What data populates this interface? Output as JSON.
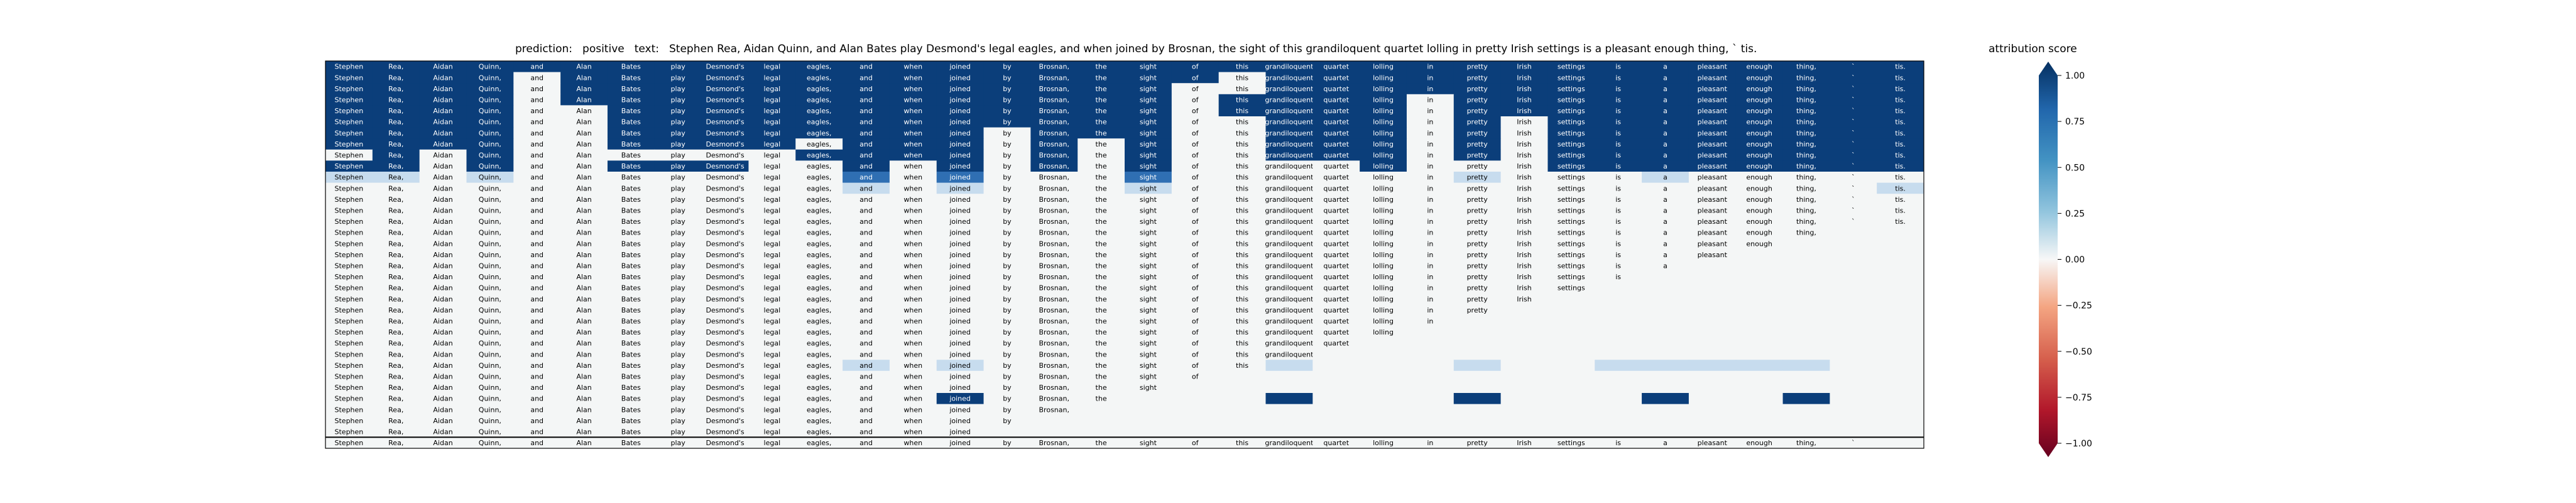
{
  "title": {
    "prediction_label": "prediction:",
    "prediction_value": "positive",
    "text_label": "text:",
    "text_value": "Stephen Rea, Aidan Quinn, and Alan Bates play Desmond's legal eagles, and when joined by Brosnan, the sight of this grandiloquent quartet lolling in pretty Irish settings is a pleasant enough thing, ` tis."
  },
  "colorbar": {
    "title": "attribution score",
    "ticks": [
      "1.00",
      "0.75",
      "0.50",
      "0.25",
      "0.00",
      "−0.25",
      "−0.50",
      "−0.75",
      "−1.00"
    ],
    "colors": {
      "strong_positive": "#0b3e7a",
      "positive": "#2f6fb3",
      "light_positive": "#c7dcee",
      "neutral": "#f4f6f6",
      "negative": "#c7283c",
      "strong_negative": "#6b001f"
    }
  },
  "chart_data": {
    "type": "heatmap",
    "tokens": [
      "Stephen",
      "Rea,",
      "Aidan",
      "Quinn,",
      "and",
      "Alan",
      "Bates",
      "play",
      "Desmond's",
      "legal",
      "eagles,",
      "and",
      "when",
      "joined",
      "by",
      "Brosnan,",
      "the",
      "sight",
      "of",
      "this",
      "grandiloquent",
      "quartet",
      "lolling",
      "in",
      "pretty",
      "Irish",
      "settings",
      "is",
      "a",
      "pleasant",
      "enough",
      "thing,",
      "`",
      "tis."
    ],
    "row_lengths": [
      34,
      34,
      34,
      34,
      34,
      34,
      34,
      34,
      34,
      34,
      34,
      34,
      34,
      34,
      34,
      32,
      31,
      30,
      29,
      28,
      27,
      26,
      25,
      24,
      23,
      22,
      21,
      20,
      19,
      18,
      17,
      16,
      15,
      14,
      33
    ],
    "attribution_levels": [
      1,
      0.5,
      0.15,
      0
    ],
    "row_attributions": [
      {
        "row": 0,
        "level": 1,
        "cols": [
          0,
          1,
          2,
          3,
          4,
          5,
          6,
          7,
          8,
          9,
          10,
          11,
          12,
          13,
          14,
          15,
          16,
          17,
          18,
          19,
          20,
          21,
          22,
          23,
          24,
          25,
          26,
          27,
          28,
          29,
          30,
          31,
          32,
          33
        ]
      },
      {
        "row": 1,
        "level": 1,
        "cols": [
          0,
          1,
          2,
          3,
          5,
          6,
          7,
          8,
          9,
          10,
          11,
          12,
          13,
          14,
          15,
          16,
          17,
          18,
          20,
          21,
          22,
          23,
          24,
          25,
          26,
          27,
          28,
          29,
          30,
          31,
          32,
          33
        ]
      },
      {
        "row": 2,
        "level": 1,
        "cols": [
          0,
          1,
          2,
          3,
          5,
          6,
          7,
          8,
          9,
          10,
          11,
          12,
          13,
          14,
          15,
          16,
          17,
          20,
          21,
          22,
          23,
          24,
          25,
          26,
          27,
          28,
          29,
          30,
          31,
          32,
          33
        ]
      },
      {
        "row": 3,
        "level": 1,
        "cols": [
          0,
          1,
          2,
          3,
          5,
          6,
          7,
          8,
          9,
          10,
          11,
          12,
          13,
          14,
          15,
          16,
          17,
          19,
          20,
          21,
          22,
          24,
          25,
          26,
          27,
          28,
          29,
          30,
          31,
          32,
          33
        ]
      },
      {
        "row": 4,
        "level": 1,
        "cols": [
          0,
          1,
          2,
          3,
          6,
          7,
          8,
          9,
          10,
          11,
          12,
          13,
          14,
          15,
          16,
          17,
          19,
          20,
          21,
          22,
          24,
          25,
          26,
          27,
          28,
          29,
          30,
          31,
          32,
          33
        ]
      },
      {
        "row": 5,
        "level": 1,
        "cols": [
          0,
          1,
          2,
          3,
          6,
          7,
          8,
          9,
          10,
          11,
          12,
          13,
          14,
          15,
          16,
          17,
          20,
          21,
          22,
          24,
          26,
          27,
          28,
          29,
          30,
          31,
          32,
          33
        ]
      },
      {
        "row": 6,
        "level": 1,
        "cols": [
          0,
          1,
          2,
          3,
          6,
          7,
          8,
          9,
          10,
          11,
          12,
          13,
          15,
          16,
          17,
          20,
          21,
          22,
          24,
          26,
          27,
          28,
          29,
          30,
          31,
          32,
          33
        ]
      },
      {
        "row": 7,
        "level": 1,
        "cols": [
          0,
          1,
          2,
          3,
          6,
          7,
          8,
          9,
          11,
          12,
          13,
          15,
          17,
          20,
          21,
          22,
          24,
          26,
          27,
          28,
          29,
          30,
          31,
          32,
          33
        ]
      },
      {
        "row": 8,
        "level": 1,
        "cols": [
          1,
          3,
          10,
          11,
          12,
          13,
          15,
          17,
          20,
          21,
          22,
          24,
          26,
          27,
          28,
          29,
          30,
          31,
          32,
          33
        ]
      },
      {
        "row": 9,
        "level": 1,
        "cols": [
          0,
          1,
          3,
          6,
          7,
          8,
          11,
          13,
          15,
          17,
          22,
          26,
          27,
          28,
          29,
          30,
          31,
          32,
          33
        ]
      },
      {
        "row": 10,
        "level": 0.5,
        "cols": [
          11,
          13,
          17
        ]
      },
      {
        "row": 10,
        "level": 0.15,
        "cols": [
          0,
          1,
          3,
          24,
          28
        ]
      },
      {
        "row": 11,
        "level": 0.15,
        "cols": [
          11,
          13,
          17,
          33
        ]
      },
      {
        "row": 27,
        "level": 0.15,
        "cols": [
          11,
          13,
          20,
          24,
          27,
          28,
          29,
          30,
          31
        ]
      },
      {
        "row": 30,
        "level": 1,
        "cols": [
          13,
          20,
          24,
          28,
          31
        ]
      }
    ],
    "last_row_separated": true,
    "colormap": "RdBu",
    "vmin": -1.0,
    "vmax": 1.0
  }
}
